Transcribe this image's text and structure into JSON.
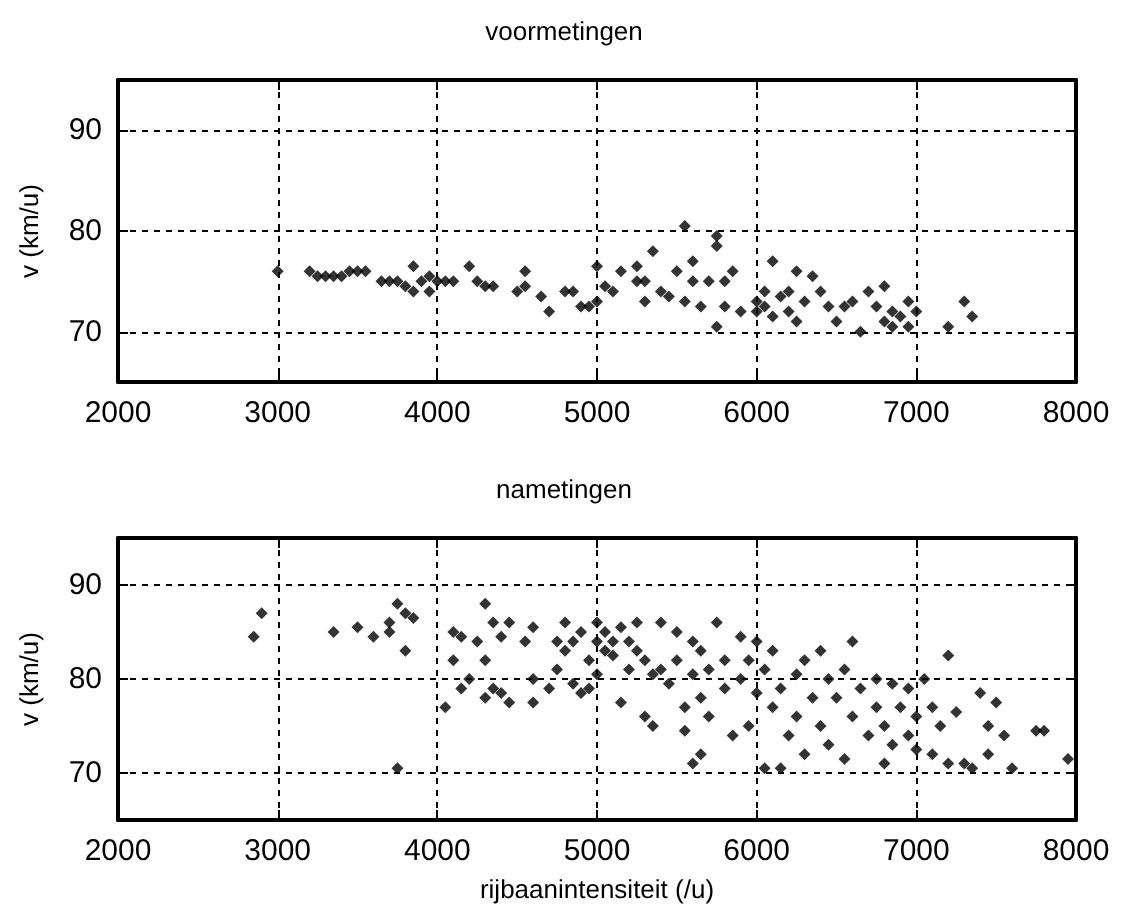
{
  "chart_data": [
    {
      "type": "scatter",
      "title": "voormetingen",
      "ylabel": "v (km/u)",
      "xlim": [
        2000,
        8000
      ],
      "xticks": [
        2000,
        3000,
        4000,
        5000,
        6000,
        7000,
        8000
      ],
      "ylim": [
        65,
        95
      ],
      "yticks": [
        70,
        80,
        90
      ],
      "grid": true,
      "marker": "diamond",
      "series": [
        {
          "color": "#000000",
          "x": [
            3000,
            3200,
            3250,
            3300,
            3350,
            3400,
            3450,
            3500,
            3550,
            3650,
            3700,
            3750,
            3800,
            3850,
            3850,
            3900,
            3950,
            3950,
            4000,
            4050,
            4100,
            4200,
            4250,
            4300,
            4350,
            4500,
            4550,
            4550,
            4650,
            4700,
            4800,
            4850,
            4900,
            4950,
            5000,
            5000,
            5050,
            5100,
            5150,
            5250,
            5250,
            5300,
            5300,
            5350,
            5400,
            5450,
            5500,
            5550,
            5550,
            5600,
            5600,
            5650,
            5700,
            5750,
            5750,
            5750,
            5800,
            5800,
            5850,
            5900,
            6000,
            6000,
            6050,
            6050,
            6100,
            6100,
            6150,
            6200,
            6200,
            6250,
            6250,
            6300,
            6350,
            6400,
            6450,
            6500,
            6550,
            6600,
            6650,
            6700,
            6750,
            6800,
            6800,
            6850,
            6850,
            6900,
            6950,
            6950,
            7000,
            7200,
            7300,
            7350
          ],
          "values": [
            76,
            76,
            75.5,
            75.5,
            75.5,
            75.5,
            76,
            76,
            76,
            75,
            75,
            75,
            74.5,
            76.5,
            74,
            75,
            74,
            75.5,
            75,
            75,
            75,
            76.5,
            75,
            74.5,
            74.5,
            74,
            76,
            74.5,
            73.5,
            72,
            74,
            74,
            72.5,
            72.5,
            76.5,
            73,
            74.5,
            74,
            76,
            75,
            76.5,
            73,
            75,
            78,
            74,
            73.5,
            76,
            80.5,
            73,
            77,
            75,
            72.5,
            75,
            79.5,
            78.5,
            70.5,
            75,
            72.5,
            76,
            72,
            73,
            72,
            74,
            72.5,
            77,
            71.5,
            73.5,
            72,
            74,
            76,
            71,
            73,
            75.5,
            74,
            72.5,
            71,
            72.5,
            73,
            70,
            74,
            72.5,
            74.5,
            71,
            72,
            70.5,
            71.5,
            73,
            70.5,
            72,
            70.5,
            73,
            71.5
          ]
        }
      ]
    },
    {
      "type": "scatter",
      "title": "nametingen",
      "xlabel": "rijbaanintensiteit (/u)",
      "ylabel": "v (km/u)",
      "xlim": [
        2000,
        8000
      ],
      "xticks": [
        2000,
        3000,
        4000,
        5000,
        6000,
        7000,
        8000
      ],
      "ylim": [
        65,
        95
      ],
      "yticks": [
        70,
        80,
        90
      ],
      "grid": true,
      "marker": "diamond",
      "series": [
        {
          "color": "#000000",
          "x": [
            2850,
            2900,
            3350,
            3500,
            3600,
            3700,
            3700,
            3750,
            3750,
            3800,
            3800,
            3850,
            4050,
            4100,
            4100,
            4150,
            4150,
            4200,
            4250,
            4300,
            4300,
            4300,
            4350,
            4350,
            4400,
            4400,
            4450,
            4450,
            4550,
            4600,
            4600,
            4600,
            4700,
            4750,
            4750,
            4800,
            4800,
            4850,
            4850,
            4900,
            4900,
            4950,
            4950,
            5000,
            5000,
            5000,
            5050,
            5050,
            5100,
            5100,
            5150,
            5150,
            5200,
            5200,
            5250,
            5250,
            5300,
            5300,
            5350,
            5350,
            5400,
            5400,
            5450,
            5500,
            5500,
            5550,
            5550,
            5600,
            5600,
            5600,
            5650,
            5650,
            5650,
            5700,
            5700,
            5750,
            5800,
            5800,
            5850,
            5900,
            5900,
            5950,
            5950,
            6000,
            6000,
            6050,
            6050,
            6100,
            6100,
            6150,
            6150,
            6200,
            6250,
            6250,
            6300,
            6300,
            6350,
            6400,
            6400,
            6450,
            6450,
            6500,
            6550,
            6550,
            6600,
            6600,
            6650,
            6700,
            6750,
            6750,
            6800,
            6800,
            6850,
            6850,
            6900,
            6950,
            6950,
            7000,
            7000,
            7050,
            7100,
            7100,
            7150,
            7200,
            7200,
            7250,
            7300,
            7350,
            7400,
            7450,
            7450,
            7500,
            7550,
            7600,
            7750,
            7800,
            7950
          ],
          "values": [
            84.5,
            87,
            85,
            85.5,
            84.5,
            86,
            85,
            88,
            70.5,
            83,
            87,
            86.5,
            77,
            82,
            85,
            84.5,
            79,
            80,
            84,
            88,
            82,
            78,
            86,
            79,
            84.5,
            78.5,
            77.5,
            86,
            84,
            80,
            77.5,
            85.5,
            79,
            84,
            81,
            86,
            83,
            79.5,
            84,
            78.5,
            85,
            82,
            79,
            86,
            84,
            80.5,
            83,
            85,
            84,
            82.5,
            85.5,
            77.5,
            84,
            81,
            86,
            83,
            82,
            76,
            75,
            80.5,
            86,
            81,
            79.5,
            85,
            82,
            77,
            74.5,
            84,
            80.5,
            71,
            83,
            78,
            72,
            81,
            76,
            86,
            82,
            79,
            74,
            84.5,
            80,
            82,
            75,
            84,
            78.5,
            70.5,
            81,
            83,
            77,
            79,
            70.5,
            74,
            80.5,
            76,
            82,
            72,
            78,
            83,
            75,
            80,
            73,
            78,
            71.5,
            81,
            84,
            76,
            79,
            74,
            80,
            77,
            71,
            75,
            79.5,
            73,
            77,
            79,
            74,
            76,
            72.5,
            80,
            77,
            72,
            75,
            82.5,
            71,
            76.5,
            71,
            70.5,
            78.5,
            72,
            75,
            77.5,
            74,
            70.5,
            74.5,
            74.5,
            71.5
          ]
        }
      ]
    }
  ]
}
